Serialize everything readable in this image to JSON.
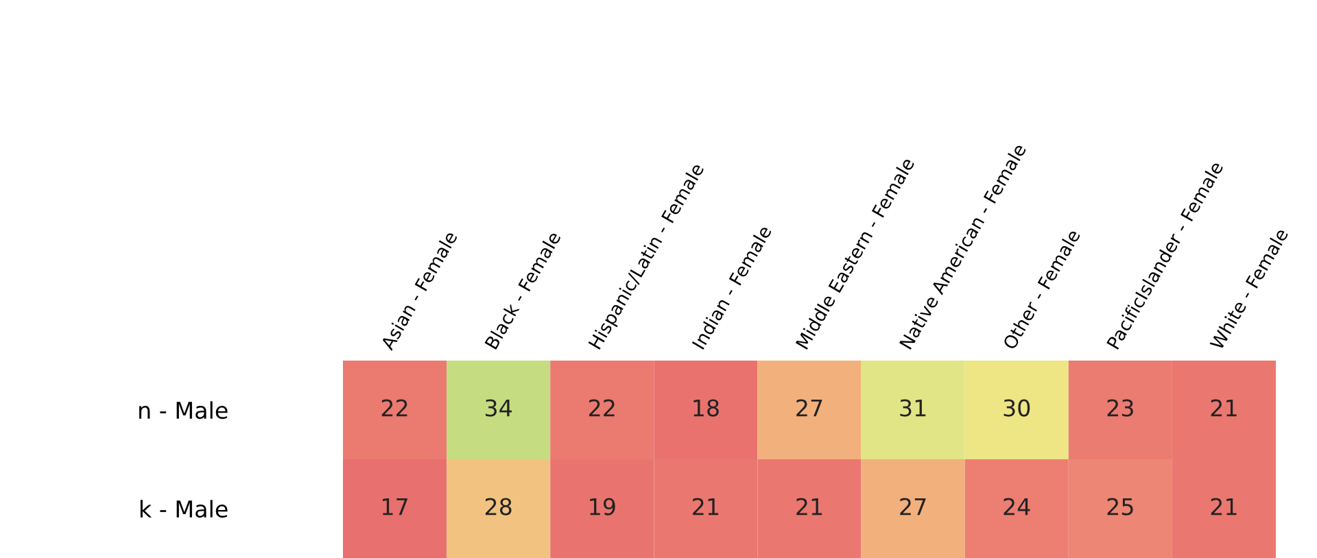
{
  "chart_data": {
    "type": "heatmap",
    "categories": [
      "Asian - Female",
      "Black - Female",
      "Hispanic/Latin - Female",
      "Indian - Female",
      "Middle Eastern - Female",
      "Native American - Female",
      "Other - Female",
      "PacificIslander - Female",
      "White - Female"
    ],
    "y_categories": [
      "n - Male",
      "k - Male"
    ],
    "cells": [
      [
        22,
        34,
        22,
        18,
        27,
        31,
        30,
        23,
        21
      ],
      [
        17,
        28,
        19,
        21,
        21,
        27,
        24,
        25,
        21
      ]
    ],
    "cell_labels": [
      [
        "22",
        "34",
        "22",
        "18",
        "27",
        "31",
        "30",
        "23",
        "21"
      ],
      [
        "17",
        "28",
        "19",
        "21",
        "21",
        "27",
        "24",
        "25",
        "21"
      ]
    ],
    "data_labels": true
  }
}
